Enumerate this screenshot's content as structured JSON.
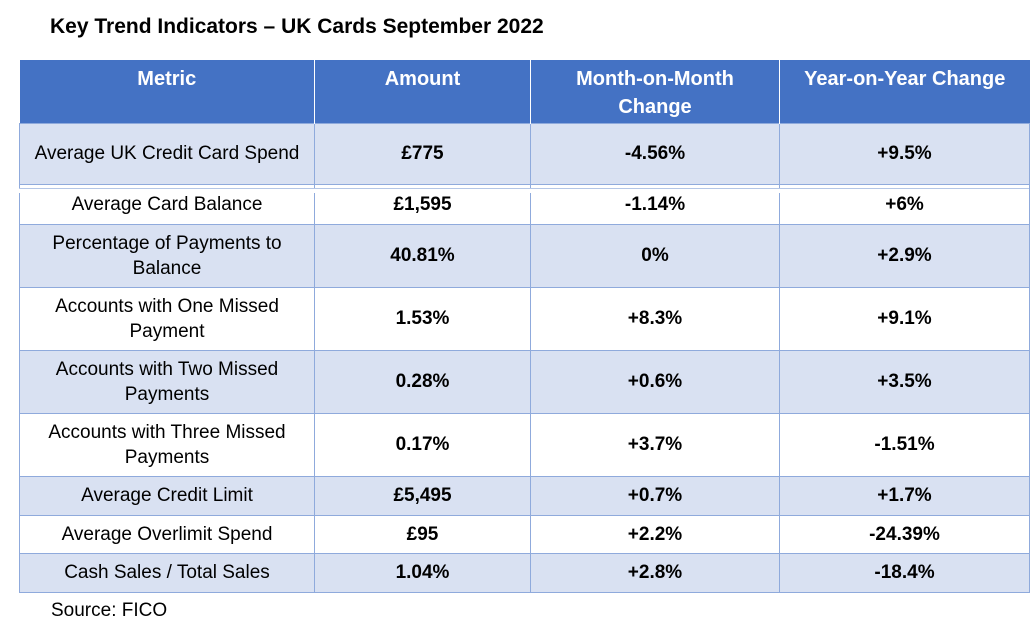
{
  "title": "Key Trend Indicators – UK Cards September 2022",
  "header": {
    "metric": "Metric",
    "amount": "Amount",
    "mom": "Month-on-Month Change",
    "yoy": "Year-on-Year Change"
  },
  "rows": [
    {
      "metric": "Average UK Credit Card Spend",
      "amount": "£775",
      "mom": "-4.56%",
      "yoy": "+9.5%"
    },
    {
      "metric": "Average Card Balance",
      "amount": "£1,595",
      "mom": "-1.14%",
      "yoy": "+6%"
    },
    {
      "metric": "Percentage of Payments to Balance",
      "amount": "40.81%",
      "mom": "0%",
      "yoy": "+2.9%"
    },
    {
      "metric": "Accounts with One Missed Payment",
      "amount": "1.53%",
      "mom": "+8.3%",
      "yoy": "+9.1%"
    },
    {
      "metric": "Accounts with Two Missed Payments",
      "amount": "0.28%",
      "mom": "+0.6%",
      "yoy": "+3.5%"
    },
    {
      "metric": "Accounts with Three Missed Payments",
      "amount": "0.17%",
      "mom": "+3.7%",
      "yoy": "-1.51%"
    },
    {
      "metric": "Average Credit Limit",
      "amount": "£5,495",
      "mom": "+0.7%",
      "yoy": "+1.7%"
    },
    {
      "metric": "Average Overlimit Spend",
      "amount": "£95",
      "mom": "+2.2%",
      "yoy": "-24.39%"
    },
    {
      "metric": "Cash Sales / Total Sales",
      "amount": "1.04%",
      "mom": "+2.8%",
      "yoy": "-18.4%"
    }
  ],
  "source": "Source: FICO",
  "colors": {
    "header_bg": "#4472c4",
    "row_shade": "#d9e1f2",
    "border": "#8faadc"
  }
}
